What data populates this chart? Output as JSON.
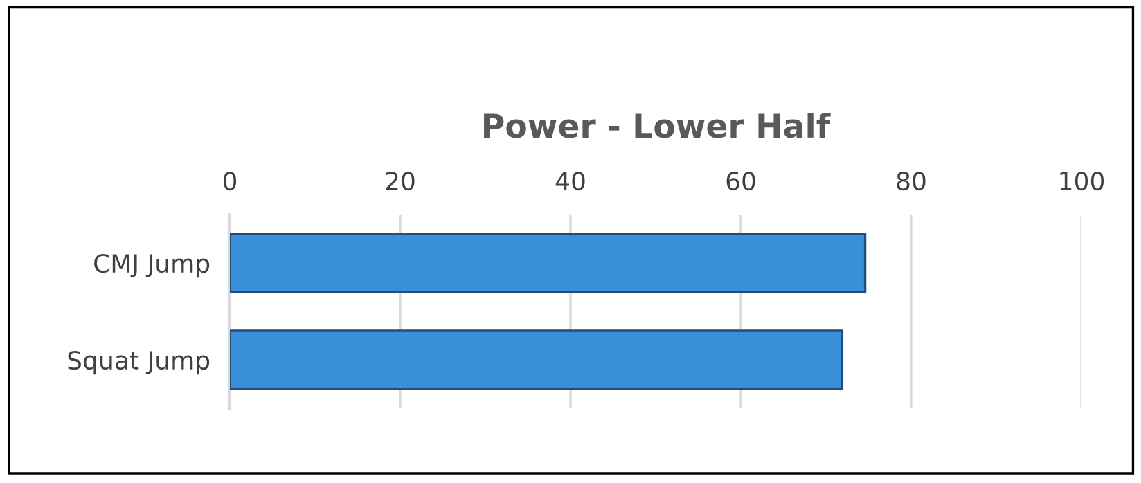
{
  "chart_data": {
    "type": "bar",
    "orientation": "horizontal",
    "title": "Power - Lower Half",
    "categories": [
      "CMJ Jump",
      "Squat Jump"
    ],
    "values": [
      74.6,
      71.9
    ],
    "color": "#3a8fd9",
    "xlim": [
      0,
      100
    ],
    "xticks": [
      0,
      20,
      40,
      60,
      80,
      100
    ],
    "grid": "x",
    "legend": false
  }
}
